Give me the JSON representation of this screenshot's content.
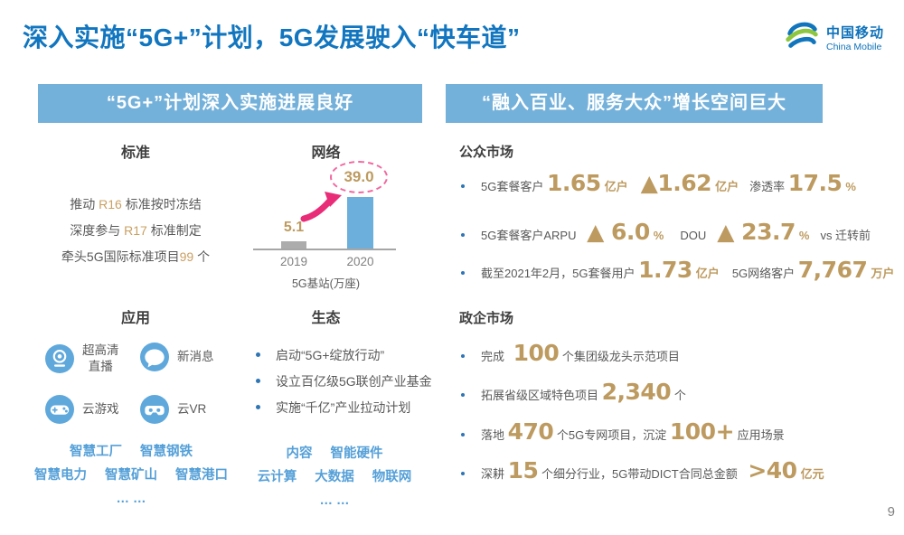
{
  "slide": {
    "title": "深入实施“5G+”计划，5G发展驶入“快车道”",
    "page_number": "9"
  },
  "logo": {
    "name_cn": "中国移动",
    "name_en": "China Mobile"
  },
  "colors": {
    "title_blue": "#1176BF",
    "header_bar_blue": "#74B1DA",
    "gold_accent": "#BD9A5F",
    "link_blue": "#55A0D8",
    "body_gray": "#595959",
    "heading_dark": "#3F3F3F",
    "pink_accent": "#E82C77",
    "bar_gray": "#ACACAC",
    "bar_blue": "#6CAFDC",
    "bullet_blue": "#2E75B6"
  },
  "left_panel": {
    "header": "“5G+”计划深入实施进展良好",
    "standard": {
      "heading": "标准",
      "lines": [
        [
          {
            "t": "推动 "
          },
          {
            "t": "R16",
            "s": "hl"
          },
          {
            "t": " 标准按时冻结"
          }
        ],
        [
          {
            "t": "深度参与 "
          },
          {
            "t": "R17",
            "s": "hl"
          },
          {
            "t": " 标准制定"
          }
        ],
        [
          {
            "t": "牵头5G国际标准项目"
          },
          {
            "t": "99",
            "s": "hl"
          },
          {
            "t": " 个"
          }
        ]
      ]
    },
    "network": {
      "heading": "网络"
    },
    "application": {
      "heading": "应用",
      "items": [
        {
          "icon": "webcam-icon",
          "label": "超高清\n直播"
        },
        {
          "icon": "chat-icon",
          "label": "新消息"
        },
        {
          "icon": "gamepad-icon",
          "label": "云游戏"
        },
        {
          "icon": "vr-icon",
          "label": "云VR"
        }
      ],
      "tags": [
        [
          "智慧工厂",
          "智慧钢铁"
        ],
        [
          "智慧电力",
          "智慧矿山",
          "智慧港口"
        ],
        [
          "… …"
        ]
      ]
    },
    "ecosystem": {
      "heading": "生态",
      "bullets": [
        "启动“5G+绽放行动”",
        "设立百亿级5G联创产业基金",
        "实施“千亿”产业拉动计划"
      ],
      "tags": [
        [
          "内容",
          "智能硬件"
        ],
        [
          "云计算",
          "大数据",
          "物联网"
        ],
        [
          "… …"
        ]
      ]
    }
  },
  "right_panel": {
    "header": "“融入百业、服务大众”增长空间巨大",
    "public_market": {
      "heading": "公众市场",
      "rows": [
        [
          {
            "t": "5G套餐客户 "
          },
          {
            "t": "1.65",
            "s": "big"
          },
          {
            "t": "亿户",
            "s": "unit"
          },
          {
            "t": "▲1.62",
            "s": "big",
            "g": 14
          },
          {
            "t": "亿户",
            "s": "unit"
          },
          {
            "t": "渗透率 ",
            "g": 12
          },
          {
            "t": "17.5",
            "s": "big"
          },
          {
            "t": "%",
            "s": "unit"
          }
        ],
        [
          {
            "t": "5G套餐客户ARPU "
          },
          {
            "t": "▲ 6.0",
            "s": "big",
            "g": 8
          },
          {
            "t": "%",
            "s": "unit"
          },
          {
            "t": "DOU",
            "g": 18
          },
          {
            "t": "▲ 23.7",
            "s": "big",
            "g": 12
          },
          {
            "t": "%",
            "s": "unit"
          },
          {
            "t": "vs 迁转前",
            "g": 12
          }
        ],
        [
          {
            "t": "截至2021年2月，5G套餐用户 "
          },
          {
            "t": "1.73",
            "s": "big"
          },
          {
            "t": "亿户",
            "s": "unit"
          },
          {
            "t": "5G网络客户 ",
            "g": 14
          },
          {
            "t": "7,767",
            "s": "big"
          },
          {
            "t": "万户",
            "s": "unit"
          }
        ]
      ]
    },
    "gov_market": {
      "heading": "政企市场",
      "rows": [
        [
          {
            "t": "完成 "
          },
          {
            "t": "100",
            "s": "big",
            "g": 6
          },
          {
            "t": " 个集团级龙头示范项目"
          }
        ],
        [
          {
            "t": "拓展省级区域特色项目 "
          },
          {
            "t": "2,340",
            "s": "big"
          },
          {
            "t": " 个"
          }
        ],
        [
          {
            "t": "落地 "
          },
          {
            "t": "470",
            "s": "big"
          },
          {
            "t": " 个5G专网项目，沉淀 "
          },
          {
            "t": "100+",
            "s": "big"
          },
          {
            "t": " 应用场景"
          }
        ],
        [
          {
            "t": "深耕 "
          },
          {
            "t": "15",
            "s": "big"
          },
          {
            "t": " 个细分行业，5G带动DICT合同总金额 "
          },
          {
            "t": ">40",
            "s": "big",
            "g": 8
          },
          {
            "t": "亿元",
            "s": "unit"
          }
        ]
      ]
    }
  },
  "chart_data": {
    "type": "bar",
    "title": "网络",
    "categories": [
      "2019",
      "2020"
    ],
    "values": [
      5.1,
      39.0
    ],
    "value_labels": [
      "5.1",
      "39.0"
    ],
    "xlabel": "5G基站(万座)",
    "ylabel": "",
    "ylim": [
      0,
      45
    ],
    "bar_colors": [
      "#ACACAC",
      "#6CAFDC"
    ],
    "legend_position": "none",
    "grid": false,
    "annotation": "2020 value circled with pink dashed ellipse and pink rising arrow"
  }
}
